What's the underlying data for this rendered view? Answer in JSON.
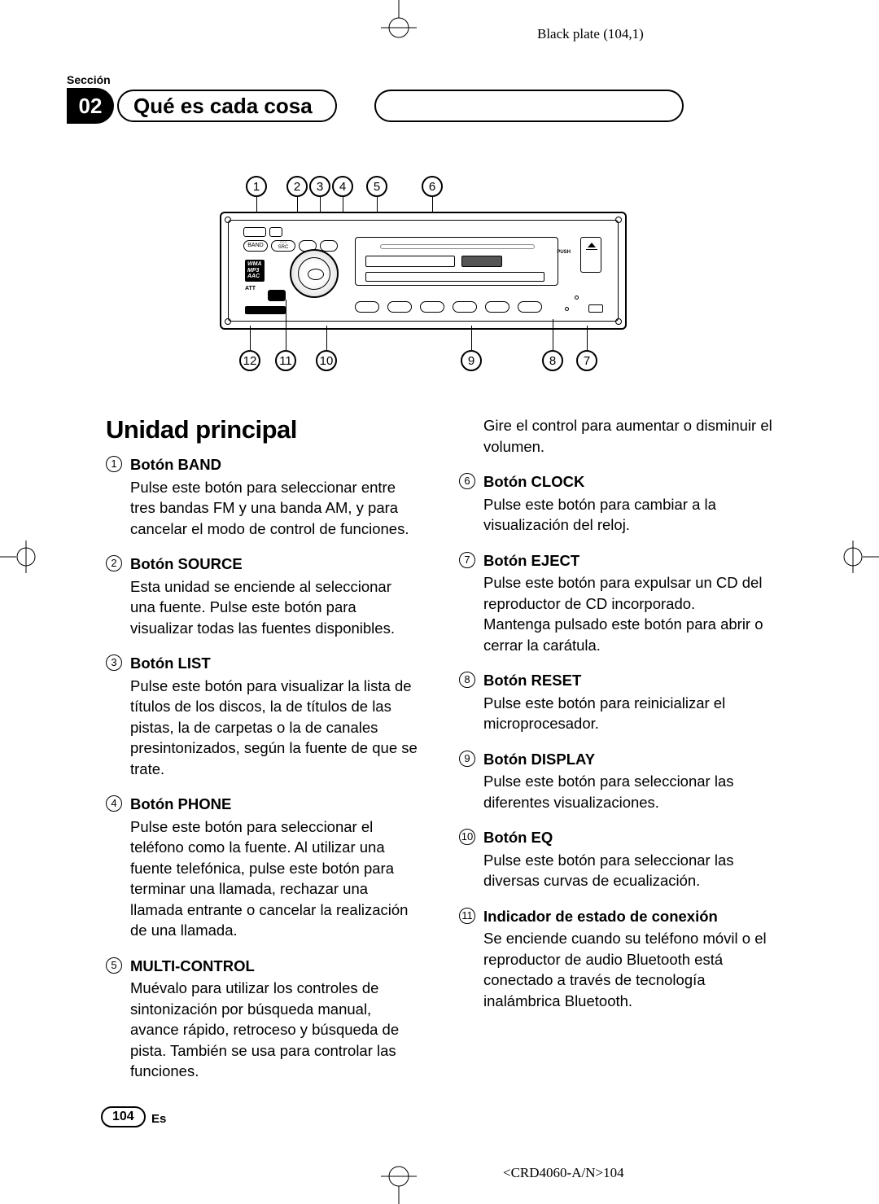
{
  "plate_info": "Black plate (104,1)",
  "section_label": "Sección",
  "chapter_number": "02",
  "chapter_title": "Qué es cada cosa",
  "main_heading": "Unidad principal",
  "format_badges": "WMA\nMP3\nAAC",
  "callouts_top": [
    "1",
    "2",
    "3",
    "4",
    "5",
    "6"
  ],
  "callouts_bottom": [
    "12",
    "11",
    "10",
    "9",
    "8",
    "7"
  ],
  "col2_lead": "Gire el control para aumentar o disminuir el volumen.",
  "left_items": [
    {
      "num": "1",
      "title": "Botón BAND",
      "body": "Pulse este botón para seleccionar entre tres bandas FM y una banda AM, y para cancelar el modo de control de funciones."
    },
    {
      "num": "2",
      "title": "Botón SOURCE",
      "body": "Esta unidad se enciende al seleccionar una fuente. Pulse este botón para visualizar todas las fuentes disponibles."
    },
    {
      "num": "3",
      "title": "Botón LIST",
      "body": "Pulse este botón para visualizar la lista de títulos de los discos, la de títulos de las pistas, la de carpetas o la de canales presintonizados, según la fuente de que se trate."
    },
    {
      "num": "4",
      "title": "Botón PHONE",
      "body": "Pulse este botón para seleccionar el teléfono como la fuente. Al utilizar una fuente telefónica, pulse este botón para terminar una llamada, rechazar una llamada entrante o cancelar la realización de una llamada."
    },
    {
      "num": "5",
      "title": "MULTI-CONTROL",
      "body": "Muévalo para utilizar los controles de sintonización por búsqueda manual, avance rápido, retroceso y búsqueda de pista. También se usa para controlar las funciones."
    }
  ],
  "right_items": [
    {
      "num": "6",
      "title": "Botón CLOCK",
      "body": "Pulse este botón para cambiar a la visualización del reloj."
    },
    {
      "num": "7",
      "title": "Botón EJECT",
      "body": "Pulse este botón para expulsar un CD del reproductor de CD incorporado.\nMantenga pulsado este botón para abrir o cerrar la carátula."
    },
    {
      "num": "8",
      "title": "Botón RESET",
      "body": "Pulse este botón para reinicializar el microprocesador."
    },
    {
      "num": "9",
      "title": "Botón DISPLAY",
      "body": "Pulse este botón para seleccionar las diferentes visualizaciones."
    },
    {
      "num": "10",
      "title": "Botón EQ",
      "body": "Pulse este botón para seleccionar las diversas curvas de ecualización."
    },
    {
      "num": "11",
      "title": "Indicador de estado de conexión",
      "body": "Se enciende cuando su teléfono móvil o el reproductor de audio Bluetooth está conectado a través de tecnología inalámbrica Bluetooth."
    }
  ],
  "page_number": "104",
  "lang_code": "Es",
  "doc_code": "<CRD4060-A/N>104"
}
